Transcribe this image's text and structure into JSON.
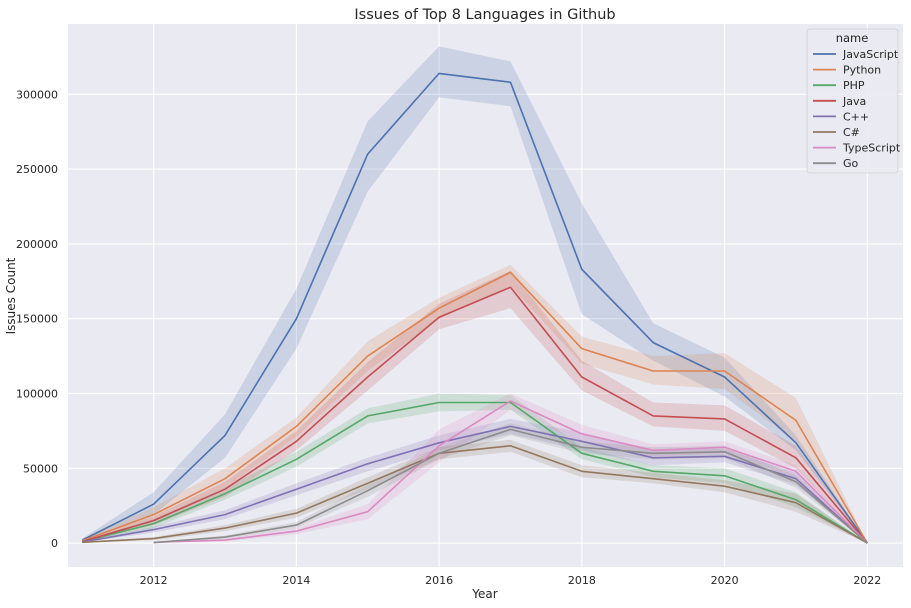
{
  "chart_data": {
    "type": "line",
    "title": "Issues of Top 8 Languages in Github",
    "xlabel": "Year",
    "ylabel": "Issues Count",
    "xlim": [
      2010.8,
      2022.5
    ],
    "ylim": [
      -16000,
      347000
    ],
    "xticks": [
      2012,
      2014,
      2016,
      2018,
      2020,
      2022
    ],
    "yticks": [
      0,
      50000,
      100000,
      150000,
      200000,
      250000,
      300000
    ],
    "grid": true,
    "legend": {
      "title": "name",
      "placement": "top-right"
    },
    "series": [
      {
        "name": "JavaScript",
        "color": "#4c72b0",
        "x": [
          2011,
          2012,
          2013,
          2014,
          2015,
          2016,
          2017,
          2018,
          2019,
          2020,
          2021,
          2022
        ],
        "values": [
          2000,
          26000,
          72000,
          150000,
          260000,
          314000,
          308000,
          183000,
          134000,
          111000,
          67000,
          0
        ],
        "lower": [
          1000,
          19000,
          57000,
          130000,
          235000,
          298000,
          292000,
          153000,
          122000,
          98000,
          62000,
          0
        ],
        "upper": [
          3000,
          34000,
          86000,
          170000,
          282000,
          332000,
          322000,
          227000,
          147000,
          124000,
          72000,
          0
        ]
      },
      {
        "name": "Python",
        "color": "#dd8452",
        "x": [
          2011,
          2012,
          2013,
          2014,
          2015,
          2016,
          2017,
          2018,
          2019,
          2020,
          2021,
          2022
        ],
        "values": [
          1500,
          19000,
          43000,
          78000,
          125000,
          157000,
          181000,
          130000,
          115000,
          115000,
          82000,
          0
        ],
        "lower": [
          800,
          15000,
          37000,
          71000,
          115000,
          150000,
          172000,
          120000,
          106000,
          103000,
          68000,
          0
        ],
        "upper": [
          2500,
          24000,
          50000,
          84000,
          135000,
          164000,
          186000,
          138000,
          125000,
          127000,
          97000,
          0
        ]
      },
      {
        "name": "PHP",
        "color": "#55a868",
        "x": [
          2011,
          2012,
          2013,
          2014,
          2015,
          2016,
          2017,
          2018,
          2019,
          2020,
          2021,
          2022
        ],
        "values": [
          1000,
          13000,
          33000,
          56000,
          85000,
          94000,
          94000,
          60000,
          48000,
          45000,
          29000,
          0
        ],
        "lower": [
          500,
          10000,
          29000,
          51000,
          80000,
          88000,
          89000,
          56000,
          44000,
          40000,
          24000,
          0
        ],
        "upper": [
          1800,
          16000,
          37000,
          61000,
          90000,
          100000,
          99000,
          64000,
          52000,
          50000,
          34000,
          0
        ]
      },
      {
        "name": "Java",
        "color": "#c44e52",
        "x": [
          2011,
          2012,
          2013,
          2014,
          2015,
          2016,
          2017,
          2018,
          2019,
          2020,
          2021,
          2022
        ],
        "values": [
          1000,
          15000,
          36000,
          68000,
          111000,
          151000,
          171000,
          111000,
          85000,
          83000,
          57000,
          0
        ],
        "lower": [
          500,
          12000,
          31000,
          62000,
          102000,
          143000,
          157000,
          102000,
          78000,
          75000,
          50000,
          0
        ],
        "upper": [
          1800,
          18000,
          41000,
          75000,
          121000,
          160000,
          182000,
          122000,
          94000,
          92000,
          65000,
          0
        ]
      },
      {
        "name": "C++",
        "color": "#8172b3",
        "x": [
          2011,
          2012,
          2013,
          2014,
          2015,
          2016,
          2017,
          2018,
          2019,
          2020,
          2021,
          2022
        ],
        "values": [
          800,
          9000,
          19000,
          36000,
          53000,
          67000,
          78000,
          68000,
          57000,
          58000,
          43000,
          0
        ],
        "lower": [
          400,
          7000,
          16000,
          32000,
          48000,
          62000,
          73000,
          62000,
          52000,
          54000,
          39000,
          0
        ],
        "upper": [
          1400,
          11000,
          22000,
          40000,
          57000,
          72000,
          83000,
          74000,
          62000,
          63000,
          47000,
          0
        ]
      },
      {
        "name": "C#",
        "color": "#937860",
        "x": [
          2011,
          2012,
          2013,
          2014,
          2015,
          2016,
          2017,
          2018,
          2019,
          2020,
          2021,
          2022
        ],
        "values": [
          500,
          3000,
          10000,
          20000,
          40000,
          60000,
          65000,
          48000,
          43000,
          38000,
          27000,
          0
        ],
        "lower": [
          200,
          2000,
          8000,
          17000,
          36000,
          56000,
          61000,
          44000,
          40000,
          34000,
          21000,
          0
        ],
        "upper": [
          900,
          4000,
          12000,
          23000,
          44000,
          64000,
          69000,
          52000,
          47000,
          42000,
          33000,
          0
        ]
      },
      {
        "name": "TypeScript",
        "color": "#da8bc3",
        "x": [
          2012,
          2013,
          2014,
          2015,
          2016,
          2017,
          2018,
          2019,
          2020,
          2021,
          2022
        ],
        "values": [
          500,
          2000,
          8000,
          21000,
          65000,
          95000,
          73000,
          62000,
          64000,
          48000,
          0
        ],
        "lower": [
          200,
          1000,
          6000,
          16000,
          54000,
          89000,
          67000,
          58000,
          60000,
          44000,
          0
        ],
        "upper": [
          900,
          3000,
          10000,
          26000,
          76000,
          100000,
          79000,
          66000,
          68000,
          52000,
          0
        ]
      },
      {
        "name": "Go",
        "color": "#8c8c8c",
        "x": [
          2012,
          2013,
          2014,
          2015,
          2016,
          2017,
          2018,
          2019,
          2020,
          2021,
          2022
        ],
        "values": [
          300,
          4000,
          12000,
          35000,
          60000,
          76000,
          64000,
          60000,
          61000,
          41000,
          0
        ],
        "lower": [
          100,
          3000,
          10000,
          31000,
          56000,
          72000,
          60000,
          56000,
          57000,
          37000,
          0
        ],
        "upper": [
          600,
          5000,
          14000,
          39000,
          64000,
          80000,
          68000,
          64000,
          65000,
          45000,
          0
        ]
      }
    ]
  }
}
